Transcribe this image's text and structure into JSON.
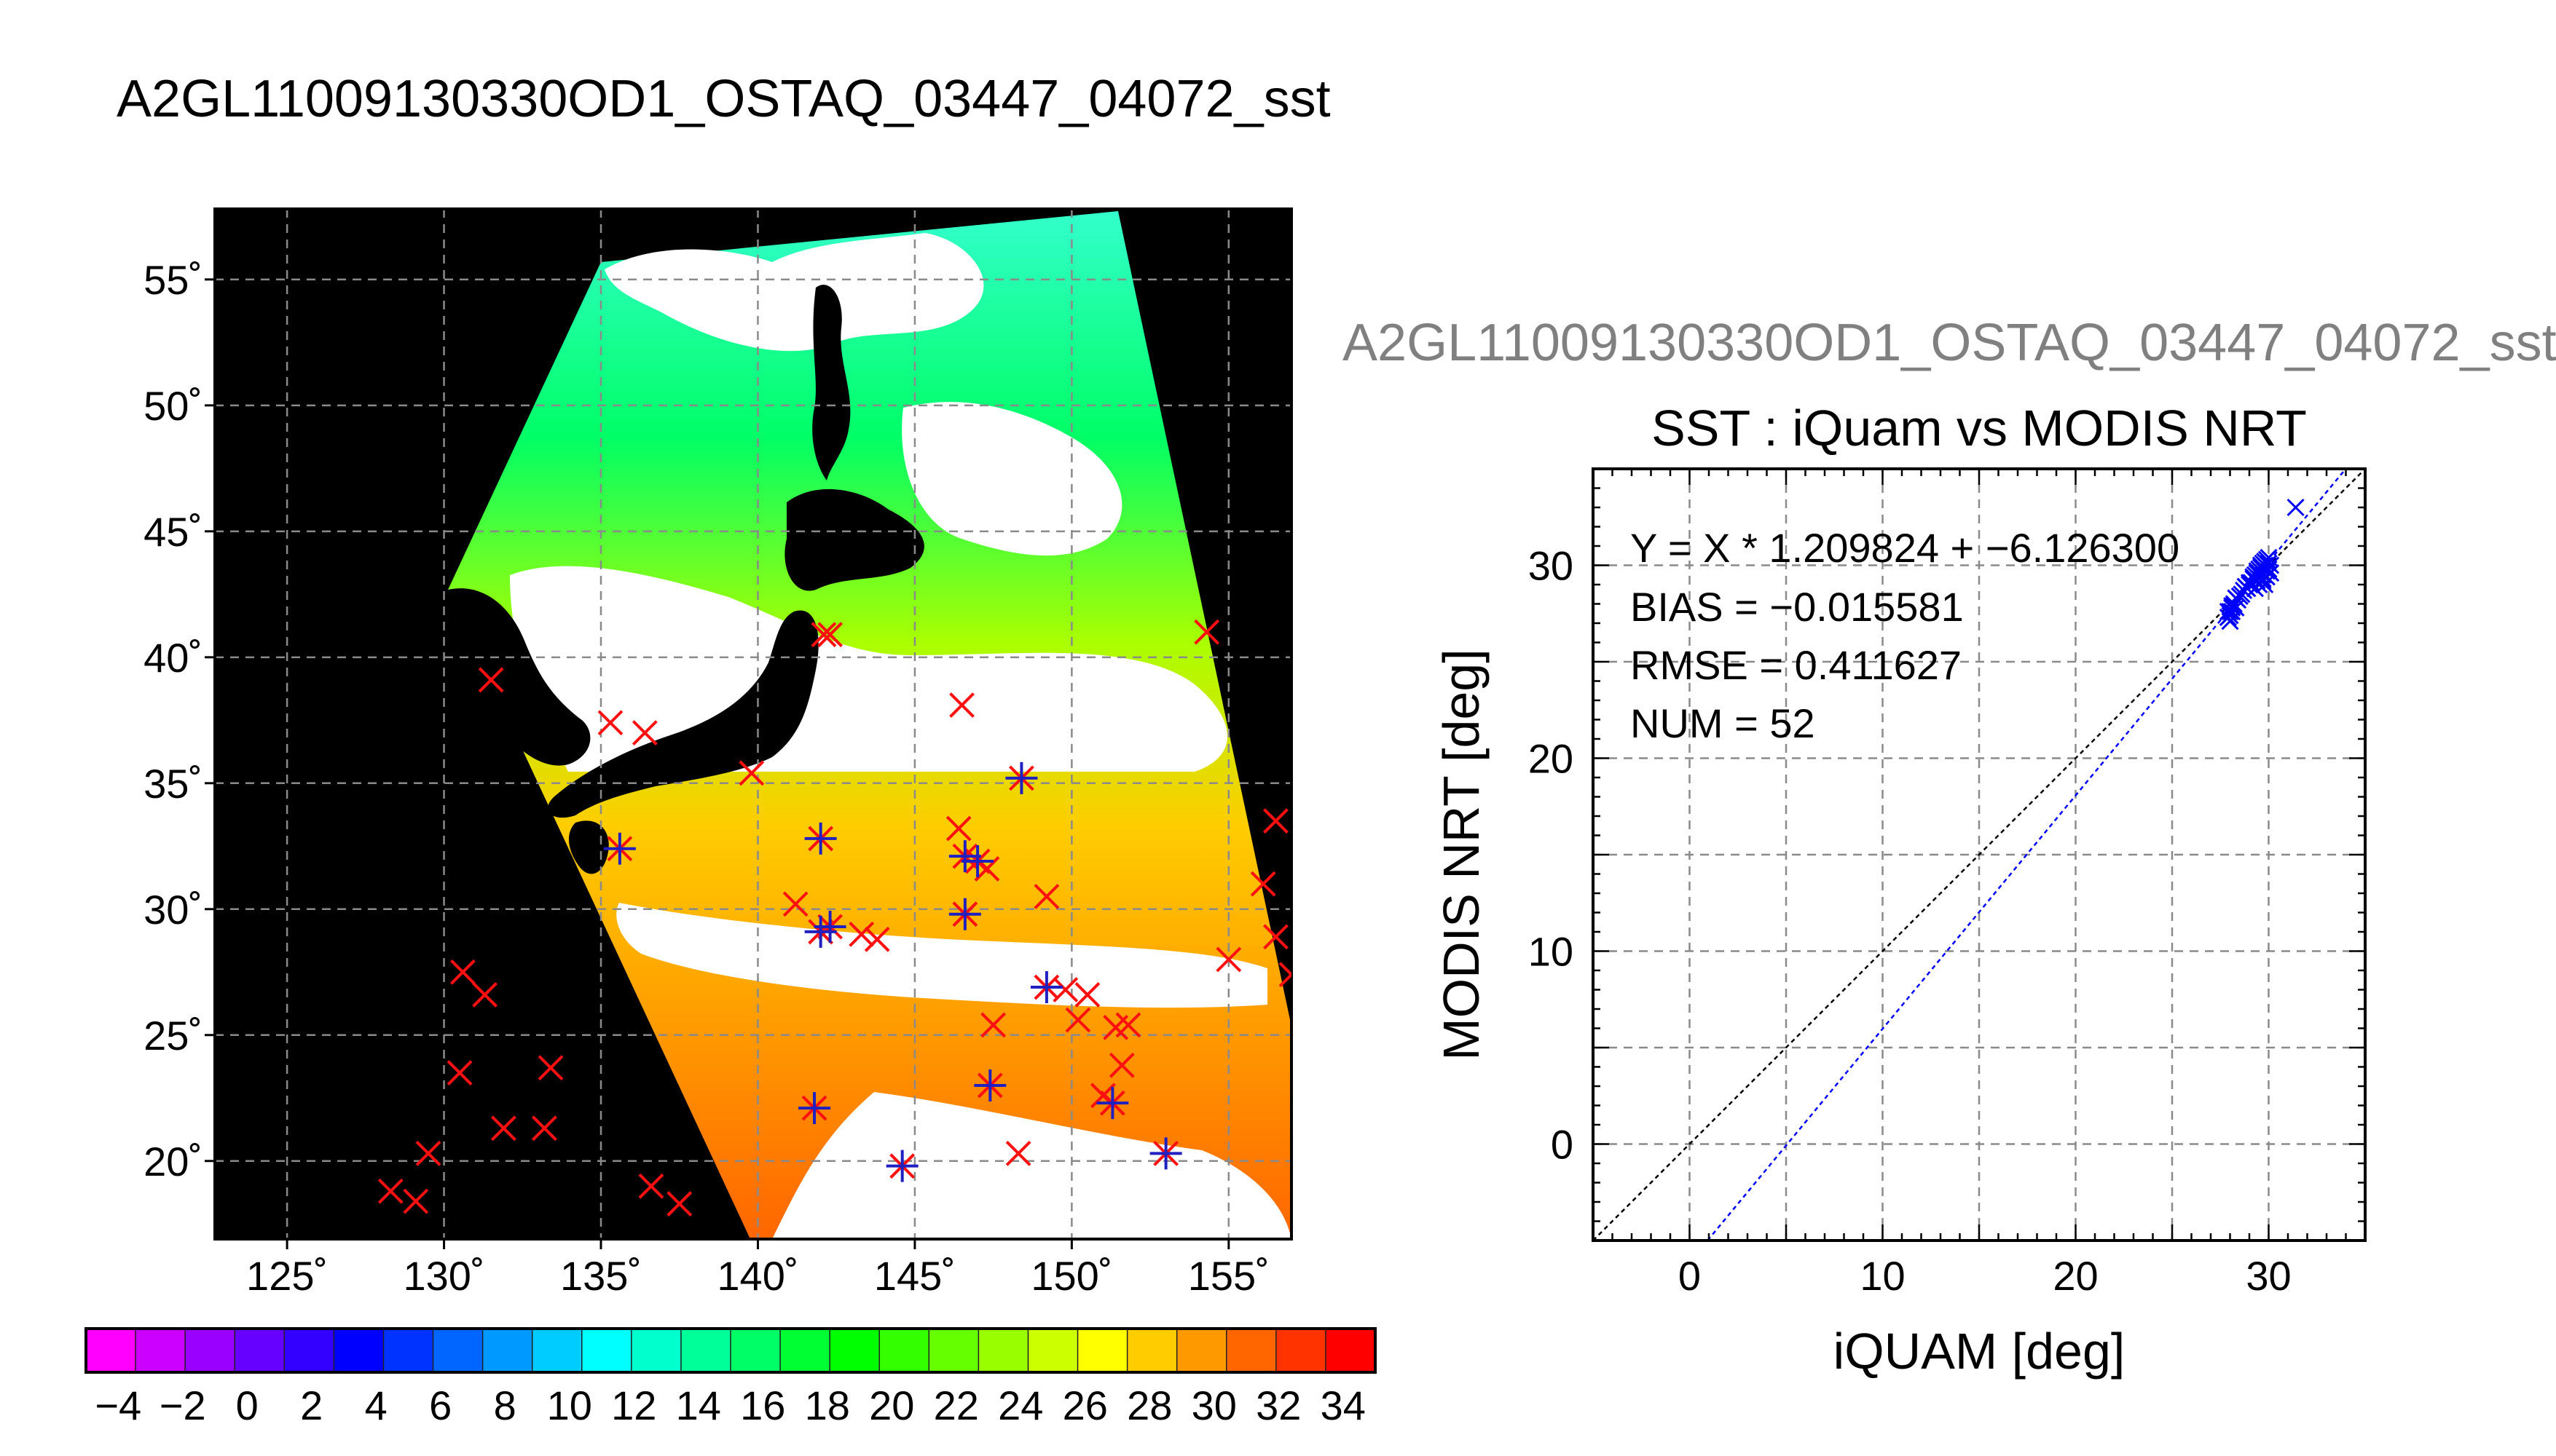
{
  "figure": {
    "main_title": "A2GL11009130330OD1_OSTAQ_03447_04072_sst",
    "sub_title": "A2GL11009130330OD1_OSTAQ_03447_04072_sst"
  },
  "chart_data": [
    {
      "type": "heatmap",
      "description_free": true,
      "lat_ticks": [
        55,
        50,
        45,
        40,
        35,
        30,
        25,
        20
      ],
      "lat_tick_labels": [
        "55˚",
        "50˚",
        "45˚",
        "40˚",
        "35˚",
        "30˚",
        "25˚",
        "20˚"
      ],
      "lon_ticks": [
        125,
        130,
        135,
        140,
        145,
        150,
        155
      ],
      "lon_tick_labels": [
        "125˚",
        "130˚",
        "135˚",
        "140˚",
        "145˚",
        "150˚",
        "155˚"
      ],
      "lon_range": [
        122.7,
        157
      ],
      "lat_range": [
        16.9,
        57.8
      ],
      "grid": true,
      "colorbar": {
        "min": -5,
        "max": 35,
        "tick_values": [
          -4,
          -2,
          0,
          2,
          4,
          6,
          8,
          10,
          12,
          14,
          16,
          18,
          20,
          22,
          24,
          26,
          28,
          30,
          32,
          34
        ],
        "tick_labels": [
          "−4",
          "−2",
          "0",
          "2",
          "4",
          "6",
          "8",
          "10",
          "12",
          "14",
          "16",
          "18",
          "20",
          "22",
          "24",
          "26",
          "28",
          "30",
          "32",
          "34"
        ],
        "colors": [
          "#ff00ff",
          "#cc00ff",
          "#9900ff",
          "#6600ff",
          "#3300ff",
          "#0000ff",
          "#0033ff",
          "#0066ff",
          "#0099ff",
          "#00ccff",
          "#00ffff",
          "#00ffcc",
          "#00ff99",
          "#00ff66",
          "#00ff33",
          "#00ff00",
          "#33ff00",
          "#66ff00",
          "#99ff00",
          "#ccff00",
          "#ffff00",
          "#ffcc00",
          "#ff9900",
          "#ff6600",
          "#ff3300",
          "#ff0000"
        ]
      },
      "markers": {
        "red_x_all_matchups": [
          [
            131.5,
            39.1
          ],
          [
            135.3,
            37.4
          ],
          [
            136.4,
            37.0
          ],
          [
            139.8,
            35.4
          ],
          [
            142.1,
            40.9
          ],
          [
            142.3,
            40.9
          ],
          [
            146.5,
            38.1
          ],
          [
            154.3,
            41.0
          ],
          [
            135.6,
            32.4
          ],
          [
            141.2,
            30.2
          ],
          [
            142.0,
            32.8
          ],
          [
            142.0,
            29.1
          ],
          [
            142.3,
            29.3
          ],
          [
            143.3,
            29.0
          ],
          [
            143.8,
            28.8
          ],
          [
            146.4,
            33.2
          ],
          [
            146.6,
            32.1
          ],
          [
            147.0,
            31.9
          ],
          [
            147.3,
            31.6
          ],
          [
            146.6,
            29.8
          ],
          [
            148.4,
            35.2
          ],
          [
            149.2,
            30.5
          ],
          [
            149.2,
            26.9
          ],
          [
            149.8,
            26.8
          ],
          [
            150.5,
            26.6
          ],
          [
            150.2,
            25.6
          ],
          [
            151.4,
            25.3
          ],
          [
            151.8,
            25.4
          ],
          [
            147.5,
            25.4
          ],
          [
            147.4,
            23.0
          ],
          [
            148.3,
            20.3
          ],
          [
            151.0,
            22.6
          ],
          [
            151.3,
            22.3
          ],
          [
            151.6,
            23.8
          ],
          [
            153.0,
            20.3
          ],
          [
            144.6,
            19.8
          ],
          [
            141.8,
            22.1
          ],
          [
            155.0,
            28.0
          ],
          [
            156.1,
            31.0
          ],
          [
            156.5,
            33.5
          ],
          [
            156.5,
            28.9
          ],
          [
            157.0,
            27.4
          ],
          [
            130.6,
            27.5
          ],
          [
            131.3,
            26.6
          ],
          [
            130.5,
            23.5
          ],
          [
            131.9,
            21.3
          ],
          [
            133.2,
            21.3
          ],
          [
            133.4,
            23.7
          ],
          [
            129.5,
            20.3
          ],
          [
            128.3,
            18.8
          ],
          [
            129.1,
            18.4
          ],
          [
            136.6,
            19.0
          ],
          [
            137.5,
            18.3
          ]
        ],
        "blue_plus_modis_matchups": [
          [
            135.6,
            32.4
          ],
          [
            142.0,
            32.8
          ],
          [
            142.0,
            29.1
          ],
          [
            142.3,
            29.3
          ],
          [
            146.6,
            32.1
          ],
          [
            147.0,
            31.9
          ],
          [
            146.6,
            29.8
          ],
          [
            148.4,
            35.2
          ],
          [
            149.2,
            26.9
          ],
          [
            147.4,
            23.0
          ],
          [
            151.3,
            22.3
          ],
          [
            153.0,
            20.3
          ],
          [
            144.6,
            19.8
          ],
          [
            141.8,
            22.1
          ]
        ]
      }
    },
    {
      "type": "scatter",
      "title": "SST : iQuam vs MODIS NRT",
      "xlabel": "iQUAM [deg]",
      "ylabel": "MODIS NRT [deg]",
      "xlim": [
        -5,
        35
      ],
      "ylim": [
        -5,
        35
      ],
      "x_ticks": [
        0,
        10,
        20,
        30
      ],
      "y_ticks": [
        0,
        10,
        20,
        30
      ],
      "grid": true,
      "annotations": [
        "Y = X * 1.209824 + −6.126300",
        "BIAS = −0.015581",
        "RMSE = 0.411627",
        "NUM = 52"
      ],
      "fit": {
        "slope": 1.209824,
        "intercept": -6.1263
      },
      "series": [
        {
          "marker": "x",
          "color": "#0000ff",
          "x": [
            27.9,
            28.0,
            28.1,
            28.2,
            28.0,
            28.3,
            28.5,
            28.7,
            28.8,
            29.0,
            29.1,
            29.2,
            29.3,
            29.4,
            29.5,
            29.6,
            29.7,
            29.8,
            29.9,
            30.0,
            29.5,
            29.7,
            29.9,
            30.1,
            29.4,
            29.6,
            29.8,
            29.3,
            29.1,
            28.9,
            28.6,
            28.4,
            28.2,
            28.1,
            27.9,
            28.0,
            29.6,
            29.8,
            30.0,
            29.7,
            29.5,
            29.9,
            30.1,
            29.2,
            29.0,
            28.8,
            28.3,
            28.1,
            29.4,
            29.7,
            30.0,
            31.4
          ],
          "y": [
            27.3,
            27.6,
            27.9,
            28.0,
            27.1,
            27.8,
            28.4,
            28.7,
            28.9,
            29.0,
            29.1,
            29.3,
            29.5,
            29.6,
            29.8,
            30.0,
            30.1,
            30.2,
            30.3,
            30.4,
            29.0,
            29.2,
            29.4,
            29.6,
            29.2,
            29.4,
            29.0,
            28.8,
            29.0,
            28.8,
            28.5,
            28.2,
            27.9,
            27.6,
            27.6,
            27.4,
            29.9,
            30.0,
            30.1,
            29.5,
            29.3,
            29.7,
            30.0,
            29.4,
            29.1,
            28.9,
            28.3,
            27.8,
            29.7,
            29.3,
            29.8,
            33.0
          ]
        }
      ]
    }
  ]
}
